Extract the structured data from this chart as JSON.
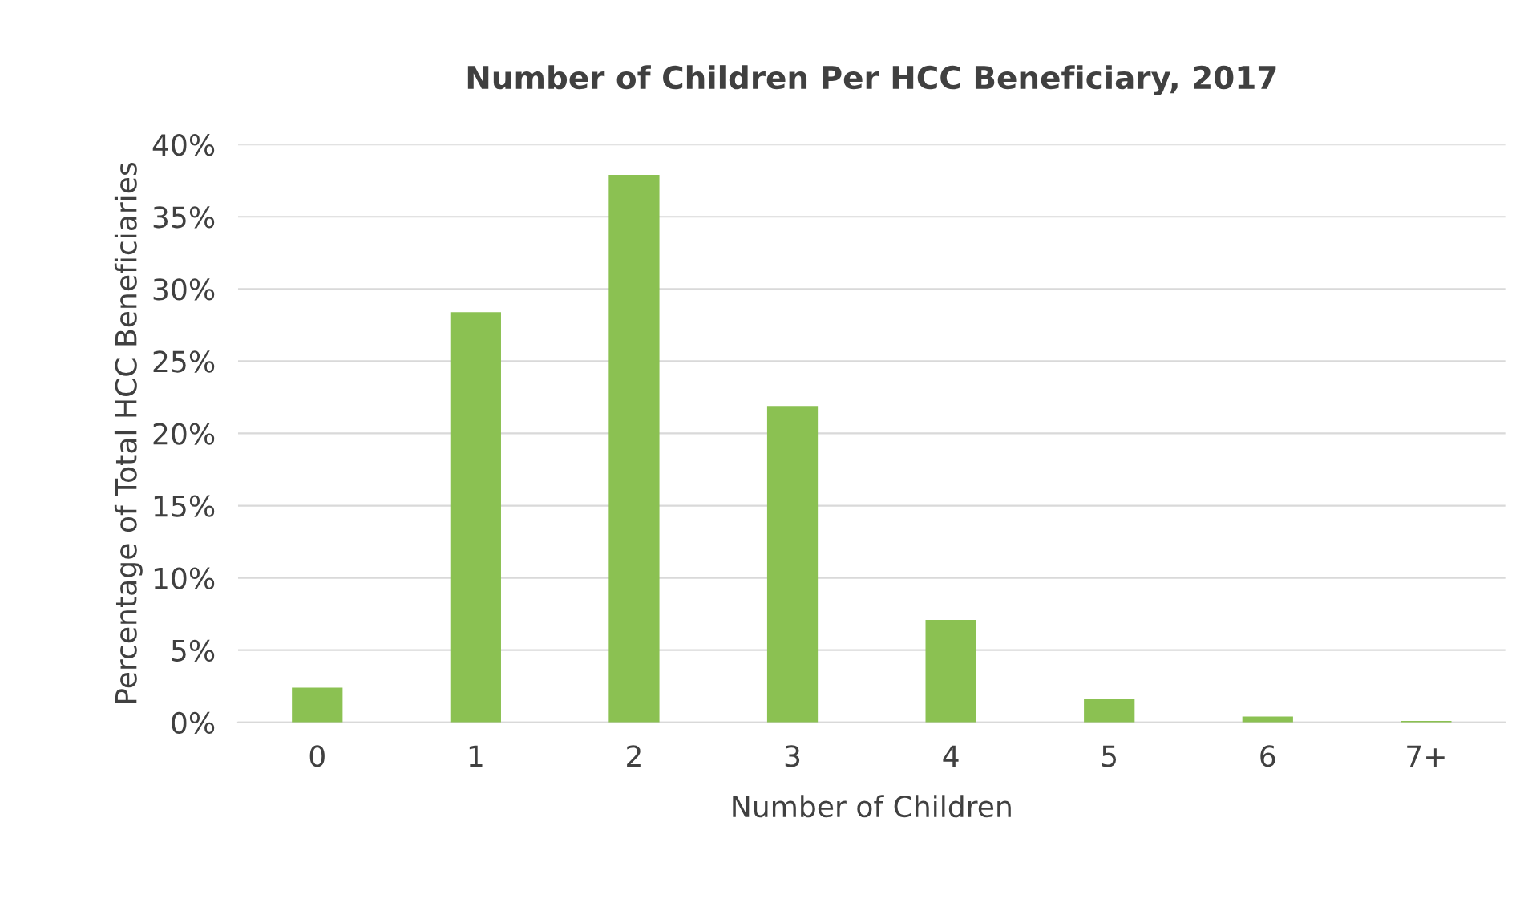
{
  "chart_data": {
    "type": "bar",
    "title": "Number of Children Per HCC Beneficiary, 2017",
    "xlabel": "Number of Children",
    "ylabel": "Percentage of Total HCC Beneficiaries",
    "categories": [
      "0",
      "1",
      "2",
      "3",
      "4",
      "5",
      "6",
      "7+"
    ],
    "values": [
      2.4,
      28.4,
      37.9,
      21.9,
      7.1,
      1.6,
      0.4,
      0.1
    ],
    "color": "#8bc152",
    "ylim": [
      0,
      40
    ],
    "yticks": [
      {
        "value": 0,
        "label": "0%"
      },
      {
        "value": 5,
        "label": "5%"
      },
      {
        "value": 10,
        "label": "10%"
      },
      {
        "value": 15,
        "label": "15%"
      },
      {
        "value": 20,
        "label": "20%"
      },
      {
        "value": 25,
        "label": "25%"
      },
      {
        "value": 30,
        "label": "30%"
      },
      {
        "value": 35,
        "label": "35%"
      },
      {
        "value": 40,
        "label": "40%"
      }
    ],
    "grid": "y"
  }
}
